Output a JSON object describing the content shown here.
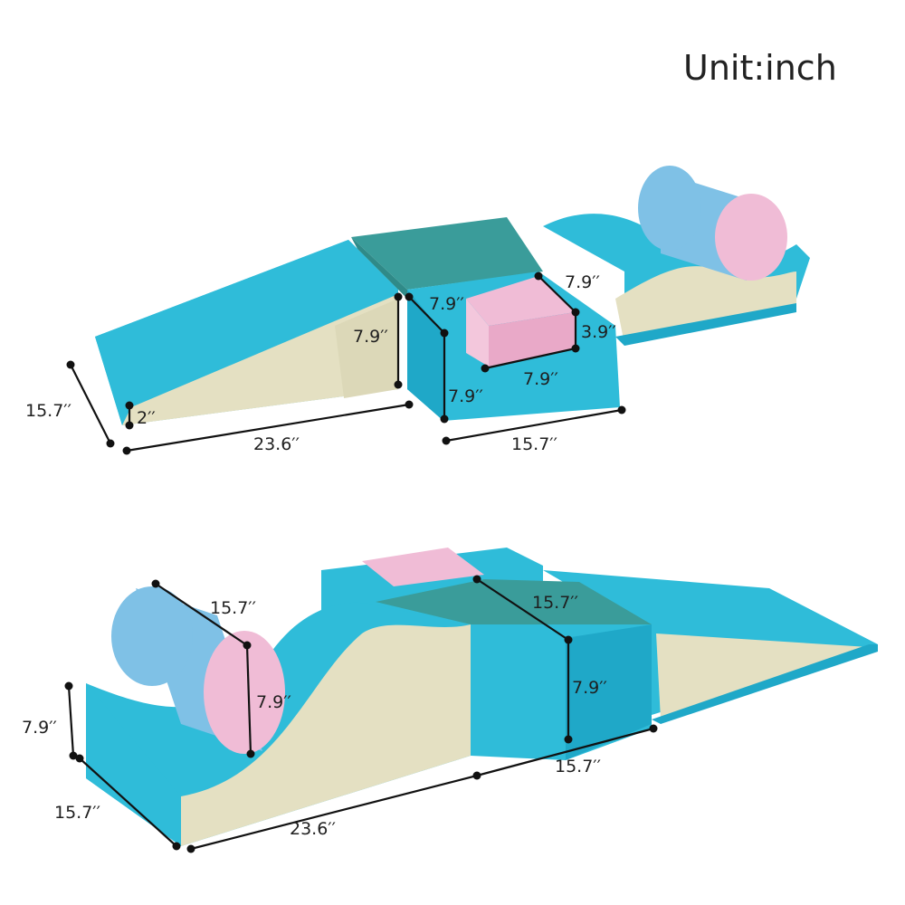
{
  "unit_label": "Unit:inch",
  "colors": {
    "light_blue": "#2fbcd9",
    "deep_blue": "#1fa8c8",
    "teal": "#3a9c9a",
    "teal_dark": "#2f8a88",
    "pink": "#f0bcd6",
    "cream": "#e4e0c2",
    "cyl_blue": "#7fc1e6"
  },
  "top_set": {
    "ramp_width": "15.7′′",
    "ramp_low_height": "2′′",
    "ramp_length": "23.6′′",
    "cube_height_front": "7.9′′",
    "cube_height_side": "7.9′′",
    "cube_depth_top": "7.9′′",
    "pad_width": "7.9′′",
    "pad_depth": "7.9′′",
    "pad_height": "3.9′′",
    "cube_length": "15.7′′"
  },
  "bottom_set": {
    "cyl_length": "15.7′′",
    "cyl_diameter": "7.9′′",
    "wave_height": "7.9′′",
    "wave_width": "15.7′′",
    "wave_length": "23.6′′",
    "block_depth": "15.7′′",
    "block_height": "7.9′′",
    "block_length": "15.7′′"
  }
}
